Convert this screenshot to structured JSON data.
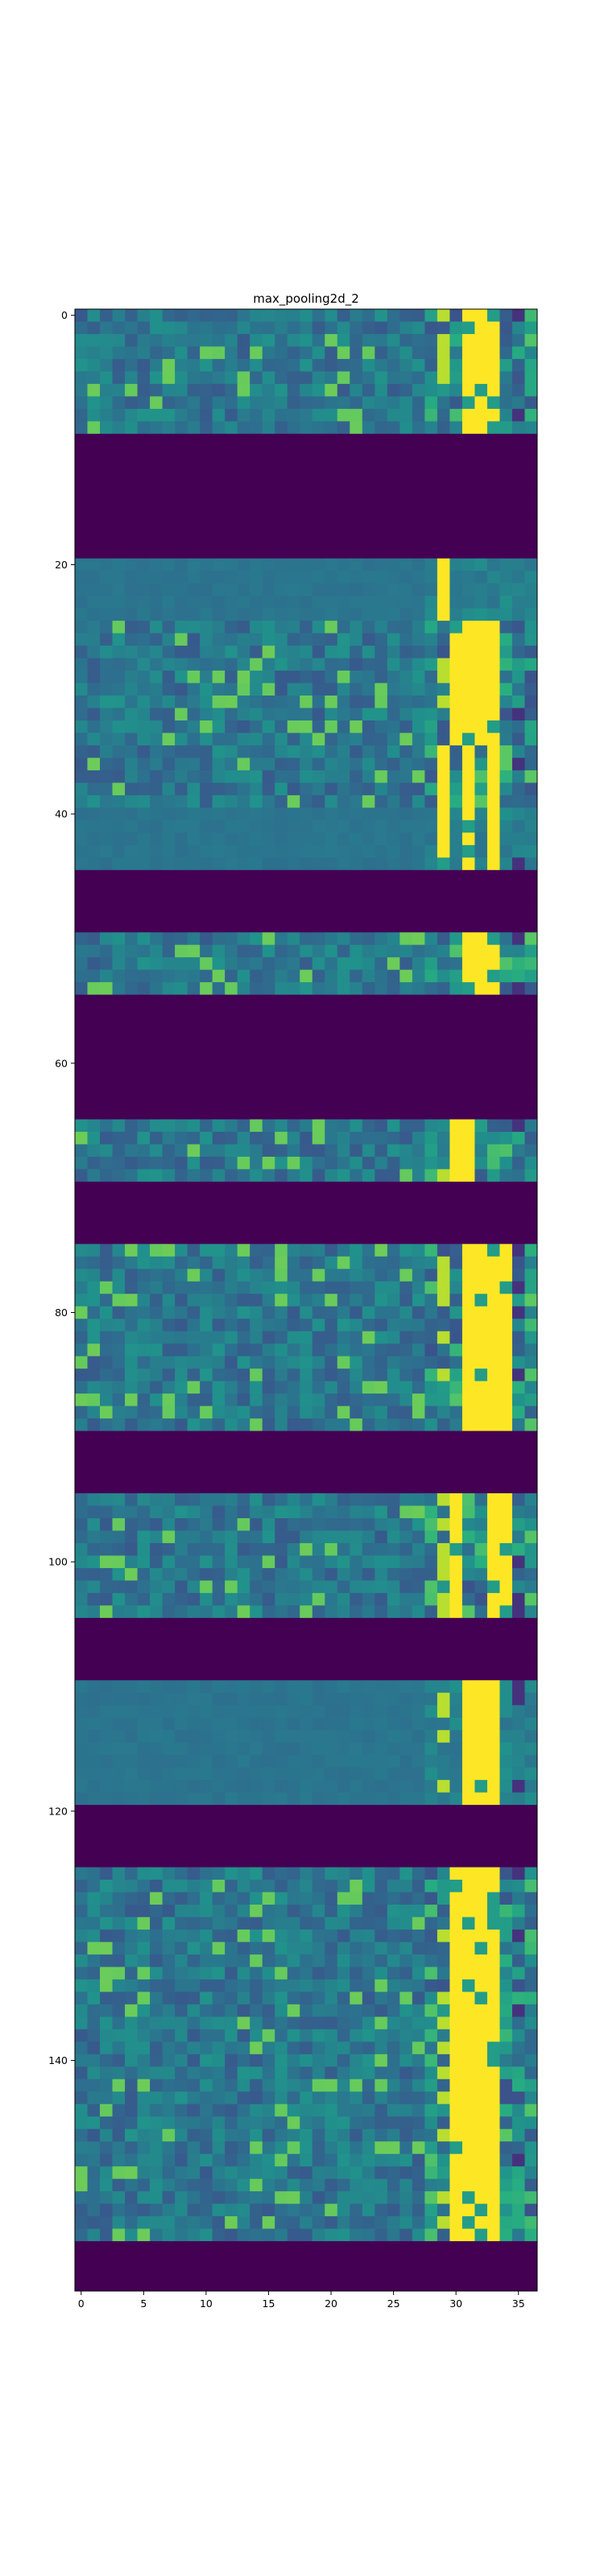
{
  "chart_data": {
    "type": "heatmap",
    "title": "max_pooling2d_2",
    "xlabel": "",
    "ylabel": "",
    "xlim": [
      -0.5,
      36.5
    ],
    "ylim": [
      158.5,
      -0.5
    ],
    "xticks": [
      0,
      5,
      10,
      15,
      20,
      25,
      30,
      35
    ],
    "yticks": [
      0,
      20,
      40,
      60,
      80,
      100,
      120,
      140
    ],
    "colormap": "viridis",
    "colors": {
      "low": "#440154",
      "mid": "#2a7f8e",
      "high": "#fde725"
    },
    "grid": false,
    "n_rows": 159,
    "n_cols": 37,
    "row_bands": [
      {
        "rows": [
          0,
          9
        ],
        "pattern": "active",
        "bright_cols": [
          31,
          32,
          33
        ]
      },
      {
        "rows": [
          10,
          19
        ],
        "pattern": "zero"
      },
      {
        "rows": [
          20,
          24
        ],
        "pattern": "uniform",
        "bright_cols": [
          29
        ]
      },
      {
        "rows": [
          25,
          34
        ],
        "pattern": "active",
        "bright_cols": [
          30,
          31,
          32,
          33
        ]
      },
      {
        "rows": [
          35,
          39
        ],
        "pattern": "active",
        "bright_cols": [
          29,
          31,
          33
        ]
      },
      {
        "rows": [
          40,
          44
        ],
        "pattern": "uniform",
        "bright_cols": [
          29,
          31,
          33
        ]
      },
      {
        "rows": [
          45,
          49
        ],
        "pattern": "zero"
      },
      {
        "rows": [
          50,
          54
        ],
        "pattern": "active",
        "bright_cols": [
          31,
          32,
          33
        ]
      },
      {
        "rows": [
          55,
          64
        ],
        "pattern": "zero"
      },
      {
        "rows": [
          65,
          69
        ],
        "pattern": "active",
        "bright_cols": [
          30,
          31
        ]
      },
      {
        "rows": [
          70,
          74
        ],
        "pattern": "zero"
      },
      {
        "rows": [
          75,
          89
        ],
        "pattern": "active",
        "bright_cols": [
          31,
          32,
          33,
          34
        ]
      },
      {
        "rows": [
          90,
          94
        ],
        "pattern": "zero"
      },
      {
        "rows": [
          95,
          104
        ],
        "pattern": "active",
        "bright_cols": [
          30,
          33,
          34
        ]
      },
      {
        "rows": [
          105,
          109
        ],
        "pattern": "zero"
      },
      {
        "rows": [
          110,
          119
        ],
        "pattern": "uniform",
        "bright_cols": [
          31,
          32,
          33
        ]
      },
      {
        "rows": [
          120,
          124
        ],
        "pattern": "zero"
      },
      {
        "rows": [
          125,
          154
        ],
        "pattern": "active",
        "bright_cols": [
          30,
          31,
          32,
          33
        ]
      },
      {
        "rows": [
          155,
          158
        ],
        "pattern": "zero"
      }
    ]
  }
}
